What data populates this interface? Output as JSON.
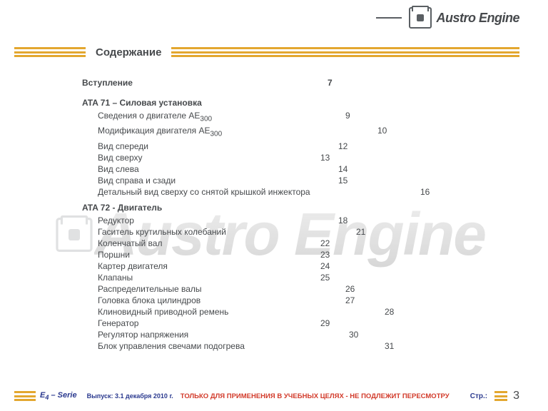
{
  "brand": {
    "name": "Austro Engine",
    "logo_color": "#5a5f63",
    "text_color": "#46494c"
  },
  "title": "Содержание",
  "accent_color": "#e3a72f",
  "watermark_text": "Austro Engine",
  "intro": {
    "label": "Вступление",
    "page": "7",
    "col": 340
  },
  "sections": [
    {
      "heading": "ATA 71 – Силовая установка",
      "items": [
        {
          "label_html": "Сведения о двигателе AE<sub>300</sub>",
          "page": "9",
          "col": 365
        },
        {
          "label_html": "Модификация двигателя AE<sub>300</sub>",
          "page": "10",
          "col": 410
        },
        {
          "label_html": "Вид спереди",
          "page": "12",
          "col": 355
        },
        {
          "label_html": "Вид сверху",
          "page": "13",
          "col": 330
        },
        {
          "label_html": "Вид слева",
          "page": "14",
          "col": 355
        },
        {
          "label_html": "Вид справа и сзади",
          "page": "15",
          "col": 355
        },
        {
          "label_html": "Детальный вид сверху со снятой крышкой инжектора",
          "page": "16",
          "col": 470
        }
      ]
    },
    {
      "heading": "ATA 72 - Двигатель",
      "items": [
        {
          "label_html": "Редуктор",
          "page": "18",
          "col": 355
        },
        {
          "label_html": "Гаситель крутильных колебаний",
          "page": "21",
          "col": 380
        },
        {
          "label_html": "Коленчатый вал",
          "page": "22",
          "col": 330
        },
        {
          "label_html": "Поршни",
          "page": "23",
          "col": 330
        },
        {
          "label_html": "Картер двигателя",
          "page": "24",
          "col": 330
        },
        {
          "label_html": "Клапаны",
          "page": "25",
          "col": 330
        },
        {
          "label_html": "Распределительные валы",
          "page": "26",
          "col": 365
        },
        {
          "label_html": "Головка блока цилиндров",
          "page": "27",
          "col": 365
        },
        {
          "label_html": "Клиновидный приводной ремень",
          "page": "28",
          "col": 420
        },
        {
          "label_html": "Генератор",
          "page": "29",
          "col": 330
        },
        {
          "label_html": "Регулятор напряжения",
          "page": "30",
          "col": 370
        },
        {
          "label_html": "Блок управления свечами подогрева",
          "page": "31",
          "col": 420
        }
      ]
    }
  ],
  "footer": {
    "series_html": "E<sub>4</sub> – Serie",
    "issue": "Выпуск: 3.1 декабря 2010 г.",
    "warning": "ТОЛЬКО ДЛЯ ПРИМЕНЕНИЯ В УЧЕБНЫХ ЦЕЛЯХ  -  НЕ ПОДЛЕЖИТ ПЕРЕСМОТРУ",
    "page_label": "Стр.:",
    "page_number": "3",
    "series_color": "#2b3a8f",
    "warning_color": "#d23a2a"
  }
}
